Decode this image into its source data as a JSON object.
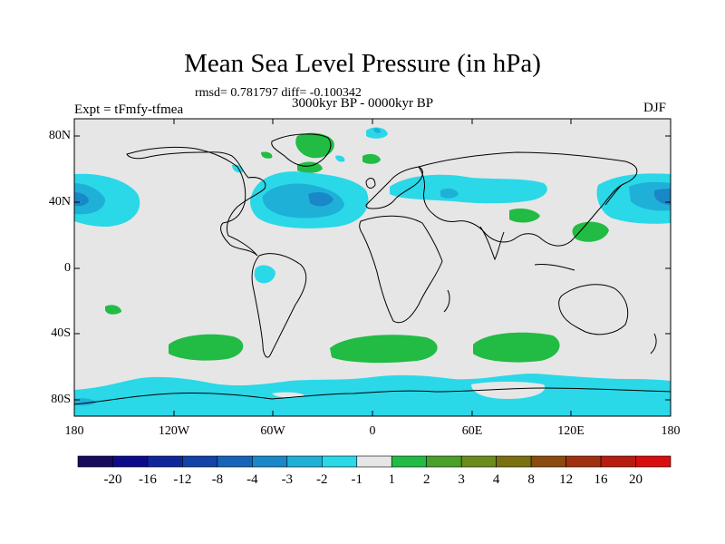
{
  "title": "Mean Sea Level Pressure (in hPa)",
  "stats": "rmsd= 0.781797 diff= -0.100342",
  "period": "3000kyr BP - 0000kyr BP",
  "experiment": "Expt = tFmfy-tfmea",
  "season": "DJF",
  "lat_labels": [
    "80N",
    "40N",
    "0",
    "40S",
    "80S"
  ],
  "lon_labels": [
    "180",
    "120W",
    "60W",
    "0",
    "60E",
    "120E",
    "180"
  ],
  "colorbar": {
    "labels": [
      "-20",
      "-16",
      "-12",
      "-8",
      "-4",
      "-3",
      "-2",
      "-1",
      "1",
      "2",
      "3",
      "4",
      "8",
      "12",
      "16",
      "20"
    ],
    "colors": [
      "#1a0a5e",
      "#0c0c8a",
      "#10279c",
      "#1243a6",
      "#1664b8",
      "#1a87c8",
      "#1fb0d8",
      "#2ad8e8",
      "#e6e6e6",
      "#22bb44",
      "#4aa028",
      "#6a8c1c",
      "#7a7010",
      "#8a4a10",
      "#a03010",
      "#b81c10",
      "#d80e0e"
    ]
  },
  "colors": {
    "ocean_background": "#e6e6e6",
    "coast": "#000000",
    "cyan": "#2ad8e8",
    "blue": "#1fb0d8",
    "green": "#22bb44"
  }
}
